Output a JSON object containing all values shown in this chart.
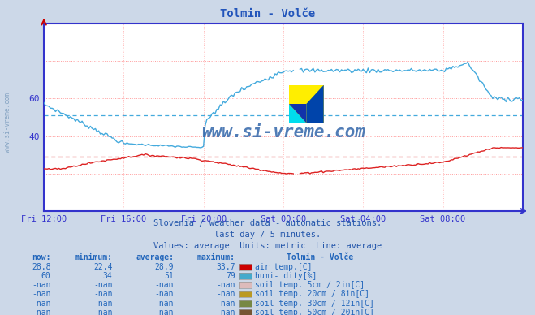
{
  "title": "Tolmin - Volče",
  "title_color": "#2255bb",
  "bg_color": "#ccd8e8",
  "plot_bg_color": "#ffffff",
  "fig_width": 6.59,
  "fig_height": 3.88,
  "dpi": 100,
  "ylim": [
    0,
    100
  ],
  "yticks": [
    40,
    60
  ],
  "grid_h_color": "#ff9999",
  "grid_v_color": "#ffbbbb",
  "axis_color": "#3333cc",
  "watermark_text": "www.si-vreme.com",
  "watermark_color": "#3366aa",
  "subtitle1": "Slovenia / weather data - automatic stations.",
  "subtitle2": "last day / 5 minutes.",
  "subtitle3": "Values: average  Units: metric  Line: average",
  "subtitle_color": "#2255aa",
  "table_header": "Tolmin - Volče",
  "table_color": "#2266bb",
  "rows": [
    {
      "now": "28.8",
      "min": "22.4",
      "avg": "28.9",
      "max": "33.7",
      "color": "#cc0000",
      "label": "air temp.[C]"
    },
    {
      "now": "60",
      "min": "34",
      "avg": "51",
      "max": "79",
      "color": "#44aacc",
      "label": "humi- dity[%]"
    },
    {
      "now": "-nan",
      "min": "-nan",
      "avg": "-nan",
      "max": "-nan",
      "color": "#ddbbbb",
      "label": "soil temp. 5cm / 2in[C]"
    },
    {
      "now": "-nan",
      "min": "-nan",
      "avg": "-nan",
      "max": "-nan",
      "color": "#bb9922",
      "label": "soil temp. 20cm / 8in[C]"
    },
    {
      "now": "-nan",
      "min": "-nan",
      "avg": "-nan",
      "max": "-nan",
      "color": "#778844",
      "label": "soil temp. 30cm / 12in[C]"
    },
    {
      "now": "-nan",
      "min": "-nan",
      "avg": "-nan",
      "max": "-nan",
      "color": "#775533",
      "label": "soil temp. 50cm / 20in[C]"
    }
  ],
  "x_tick_labels": [
    "Fri 12:00",
    "Fri 16:00",
    "Fri 20:00",
    "Sat 00:00",
    "Sat 04:00",
    "Sat 08:00"
  ],
  "x_tick_positions": [
    0,
    48,
    96,
    144,
    192,
    240
  ],
  "n_points": 289,
  "avg_humidity": 51,
  "avg_temp": 28.9,
  "hum_color": "#44aadd",
  "temp_color": "#dd2222",
  "side_label": "www.si-vreme.com"
}
